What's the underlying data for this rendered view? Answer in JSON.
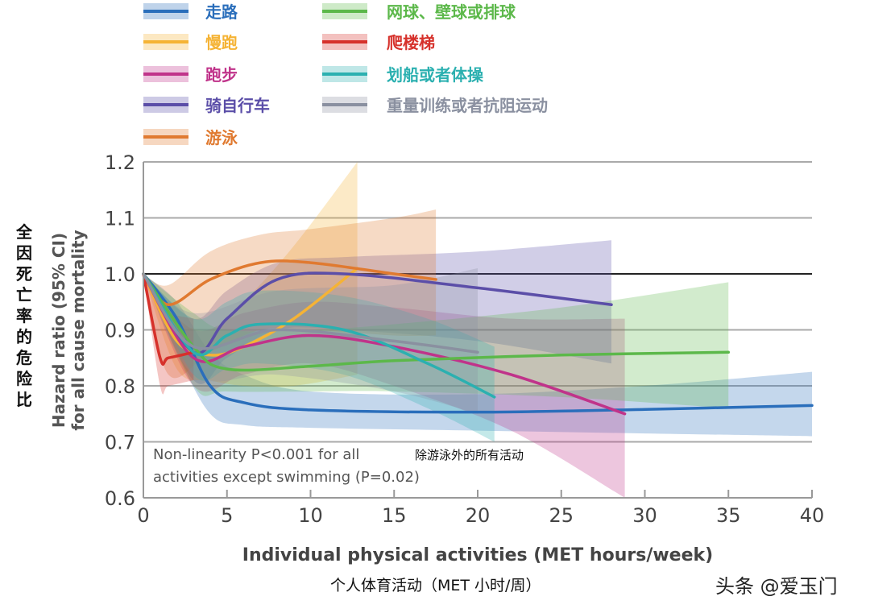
{
  "chart_data": {
    "type": "line",
    "title": "",
    "xlabel": "Individual physical activities (MET hours/week)",
    "xlabel_cn": "个人体育活动（MET 小时/周）",
    "ylabel_lines": [
      "Hazard ratio (95% CI)",
      "for all cause mortality"
    ],
    "ylabel_cn": "全因死亡率的危险比",
    "xlim": [
      0,
      40
    ],
    "ylim": [
      0.6,
      1.2
    ],
    "xticks": [
      0,
      5,
      10,
      15,
      20,
      25,
      30,
      35,
      40
    ],
    "yticks": [
      0.6,
      0.7,
      0.8,
      0.9,
      1.0,
      1.1,
      1.2
    ],
    "ytick_labels": [
      "0.6",
      "0.7",
      "0.8",
      "0.9",
      "1.0",
      "1.1",
      "1.2"
    ],
    "grid": "horizontal",
    "reference_line": 1.0,
    "legend_placement": "top",
    "annotation": {
      "line1": "Non-linearity P<0.001 for all",
      "line2": "activities except swimming (P=0.02)",
      "cn": "除游泳外的所有活动"
    },
    "series": [
      {
        "name": "走路",
        "color": "#2a6ebb",
        "x": [
          0,
          2,
          4,
          6,
          10,
          20,
          30,
          40
        ],
        "y": [
          1,
          0.92,
          0.8,
          0.77,
          0.757,
          0.753,
          0.758,
          0.765
        ],
        "lower": [
          1,
          0.86,
          0.75,
          0.73,
          0.725,
          0.72,
          0.715,
          0.71
        ],
        "upper": [
          1,
          0.95,
          0.86,
          0.82,
          0.79,
          0.785,
          0.8,
          0.825
        ]
      },
      {
        "name": "慢跑",
        "color": "#f5b335",
        "x": [
          0,
          2,
          4,
          6,
          9,
          12.8
        ],
        "y": [
          1,
          0.88,
          0.855,
          0.87,
          0.92,
          1.01
        ],
        "lower": [
          1,
          0.83,
          0.81,
          0.8,
          0.8,
          0.82
        ],
        "upper": [
          1,
          0.92,
          0.9,
          0.95,
          1.05,
          1.2
        ]
      },
      {
        "name": "跑步",
        "color": "#c0338a",
        "x": [
          0,
          3,
          6,
          10,
          15,
          22,
          28.8
        ],
        "y": [
          1,
          0.85,
          0.87,
          0.89,
          0.87,
          0.82,
          0.75
        ],
        "lower": [
          1,
          0.8,
          0.82,
          0.84,
          0.8,
          0.72,
          0.6
        ],
        "upper": [
          1,
          0.9,
          0.93,
          0.95,
          0.94,
          0.92,
          0.92
        ]
      },
      {
        "name": "骑自行车",
        "color": "#5b4ea8",
        "x": [
          0,
          3,
          5,
          8,
          12,
          20,
          28
        ],
        "y": [
          1,
          0.86,
          0.92,
          0.99,
          1.0,
          0.975,
          0.945
        ],
        "lower": [
          1,
          0.81,
          0.85,
          0.9,
          0.9,
          0.88,
          0.84
        ],
        "upper": [
          1,
          0.92,
          0.97,
          1.02,
          1.03,
          1.04,
          1.06
        ]
      },
      {
        "name": "游泳",
        "color": "#e07a30",
        "x": [
          0,
          1.5,
          4,
          7,
          10,
          15,
          17.5
        ],
        "y": [
          1,
          0.945,
          0.99,
          1.02,
          1.02,
          1.0,
          0.99
        ],
        "lower": [
          1,
          0.82,
          0.86,
          0.9,
          0.9,
          0.89,
          0.89
        ],
        "upper": [
          1,
          0.98,
          1.04,
          1.07,
          1.08,
          1.1,
          1.115
        ]
      },
      {
        "name": "网球、壁球或排球",
        "color": "#5cb84a",
        "x": [
          0,
          3,
          5,
          10,
          15,
          25,
          35
        ],
        "y": [
          1,
          0.87,
          0.83,
          0.835,
          0.845,
          0.855,
          0.86
        ],
        "lower": [
          1,
          0.8,
          0.79,
          0.79,
          0.79,
          0.78,
          0.76
        ],
        "upper": [
          1,
          0.93,
          0.9,
          0.9,
          0.91,
          0.94,
          0.985
        ]
      },
      {
        "name": "爬楼梯",
        "color": "#d6312b",
        "x": [
          0,
          1,
          1.5,
          3
        ],
        "y": [
          1,
          0.85,
          0.85,
          0.86
        ],
        "lower": [
          1,
          0.8,
          0.8,
          0.81
        ],
        "upper": [
          1,
          0.95,
          0.93,
          0.92
        ]
      },
      {
        "name": "划船或者体操",
        "color": "#2bb0b0",
        "x": [
          0,
          3,
          5,
          7,
          12,
          17,
          21
        ],
        "y": [
          1,
          0.86,
          0.89,
          0.91,
          0.9,
          0.84,
          0.78
        ],
        "lower": [
          1,
          0.82,
          0.83,
          0.84,
          0.82,
          0.76,
          0.7
        ],
        "upper": [
          1,
          0.92,
          0.95,
          0.97,
          0.96,
          0.92,
          0.87
        ]
      },
      {
        "name": "重量训练或者抗阻运动",
        "color": "#8a90a0",
        "x": [
          0,
          3,
          8,
          15,
          20
        ],
        "y": [
          1,
          0.87,
          0.9,
          0.88,
          0.86
        ],
        "lower": [
          1,
          0.82,
          0.82,
          0.79,
          0.75
        ],
        "upper": [
          1,
          0.93,
          0.97,
          0.98,
          1.01
        ]
      }
    ]
  },
  "watermark": "头条 @爱玉门"
}
